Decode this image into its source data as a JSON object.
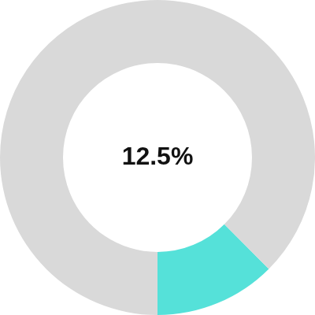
{
  "chart_data": {
    "type": "doughnut",
    "values": [
      12.5,
      87.5
    ],
    "value_labels": [
      "12.5%",
      null
    ],
    "colors": [
      "#55e1d9",
      "#d9d9d9"
    ]
  }
}
